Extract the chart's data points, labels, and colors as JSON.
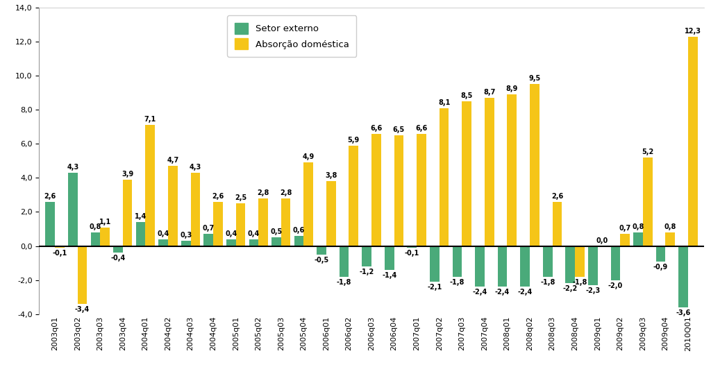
{
  "categories": [
    "2003q01",
    "2003q02",
    "2003q03",
    "2003q04",
    "2004q01",
    "2004q02",
    "2004q03",
    "2004q04",
    "2005q01",
    "2005q02",
    "2005q03",
    "2005q04",
    "2006q01",
    "2006q02",
    "2006q03",
    "2006q04",
    "2007q01",
    "2007q02",
    "2007q03",
    "2007q04",
    "2008q01",
    "2008q02",
    "2008q03",
    "2008q04",
    "2009q01",
    "2009q02",
    "2009q03",
    "2009q04",
    "2010Q01"
  ],
  "setor_externo": [
    2.6,
    4.3,
    0.8,
    -0.4,
    1.4,
    0.4,
    0.3,
    0.7,
    0.4,
    0.4,
    0.5,
    0.6,
    -0.5,
    -1.8,
    -1.2,
    -1.4,
    -0.1,
    -2.1,
    -1.8,
    -2.4,
    -2.4,
    -2.4,
    -1.8,
    -2.2,
    -2.3,
    -2.0,
    0.8,
    -0.9,
    -3.6
  ],
  "absorcao_domestica": [
    -0.1,
    -3.4,
    1.1,
    3.9,
    7.1,
    4.7,
    4.3,
    2.6,
    2.5,
    2.8,
    2.8,
    4.9,
    3.8,
    5.9,
    6.6,
    6.5,
    6.6,
    8.1,
    8.5,
    8.7,
    8.9,
    9.5,
    2.6,
    -1.8,
    0.0,
    0.7,
    5.2,
    0.8,
    12.3
  ],
  "setor_externo_color": "#4aaa7a",
  "absorcao_domestica_color": "#f5c518",
  "ylim": [
    -4.0,
    14.0
  ],
  "yticks": [
    -4.0,
    -2.0,
    0.0,
    2.0,
    4.0,
    6.0,
    8.0,
    10.0,
    12.0,
    14.0
  ],
  "legend_setor": "Setor externo",
  "legend_absorcao": "Absorção doméstica",
  "bar_width": 0.42,
  "background_color": "#ffffff",
  "label_fontsize": 7.0,
  "tick_fontsize": 8.0
}
